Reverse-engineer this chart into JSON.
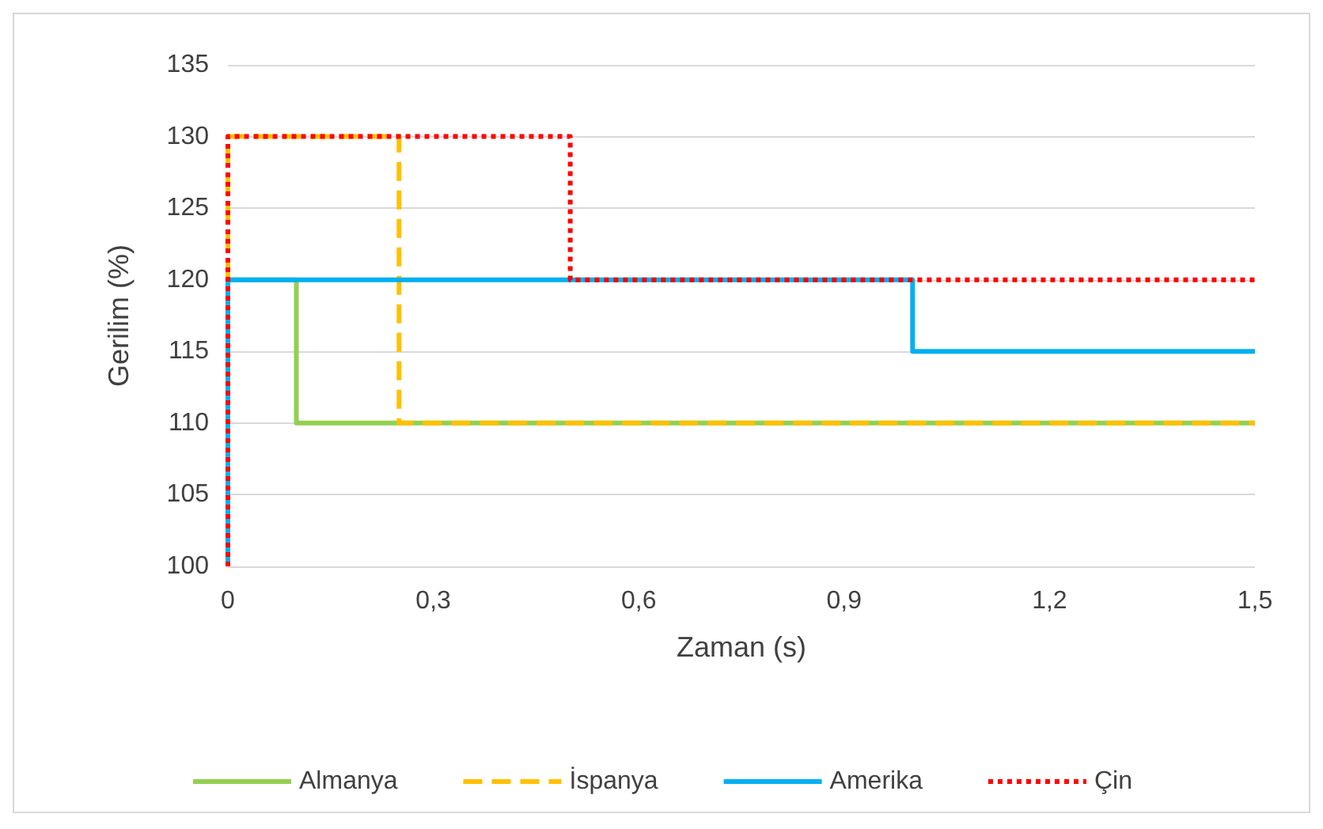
{
  "chart_data": {
    "type": "line",
    "xlabel": "Zaman (s)",
    "ylabel": "Gerilim (%)",
    "xlim": [
      0,
      1.5
    ],
    "xticks": [
      0,
      {
        "value": 0.3,
        "label": "0,3"
      },
      {
        "value": 0.6,
        "label": "0,6"
      },
      {
        "value": 0.9,
        "label": "0,9"
      },
      {
        "value": 1.2,
        "label": "1,2"
      },
      {
        "value": 1.5,
        "label": "1,5"
      }
    ],
    "ylim": [
      100,
      135
    ],
    "yticks": [
      100,
      105,
      110,
      115,
      120,
      125,
      130,
      135
    ],
    "grid": "y",
    "legend": "bottom",
    "marker": "none",
    "series": [
      {
        "name": "Almanya",
        "color": "#92d050",
        "line_style": "solid",
        "x": [
          0,
          0,
          0.1,
          0.1,
          1.5
        ],
        "values": [
          100,
          120,
          120,
          110,
          110
        ]
      },
      {
        "name": "İspanya",
        "color": "#ffc000",
        "line_style": "dashed",
        "x": [
          0,
          0,
          0.25,
          0.25,
          1.5
        ],
        "values": [
          100,
          130,
          130,
          110,
          110
        ]
      },
      {
        "name": "Amerika",
        "color": "#00b0f0",
        "line_style": "solid",
        "x": [
          0,
          0,
          1,
          1,
          1.5
        ],
        "values": [
          100,
          120,
          120,
          115,
          115
        ]
      },
      {
        "name": "Çin",
        "color": "#ff0000",
        "line_style": "dotted",
        "x": [
          0,
          0,
          0.5,
          0.5,
          1.5
        ],
        "values": [
          100,
          130,
          130,
          120,
          120
        ]
      }
    ]
  }
}
